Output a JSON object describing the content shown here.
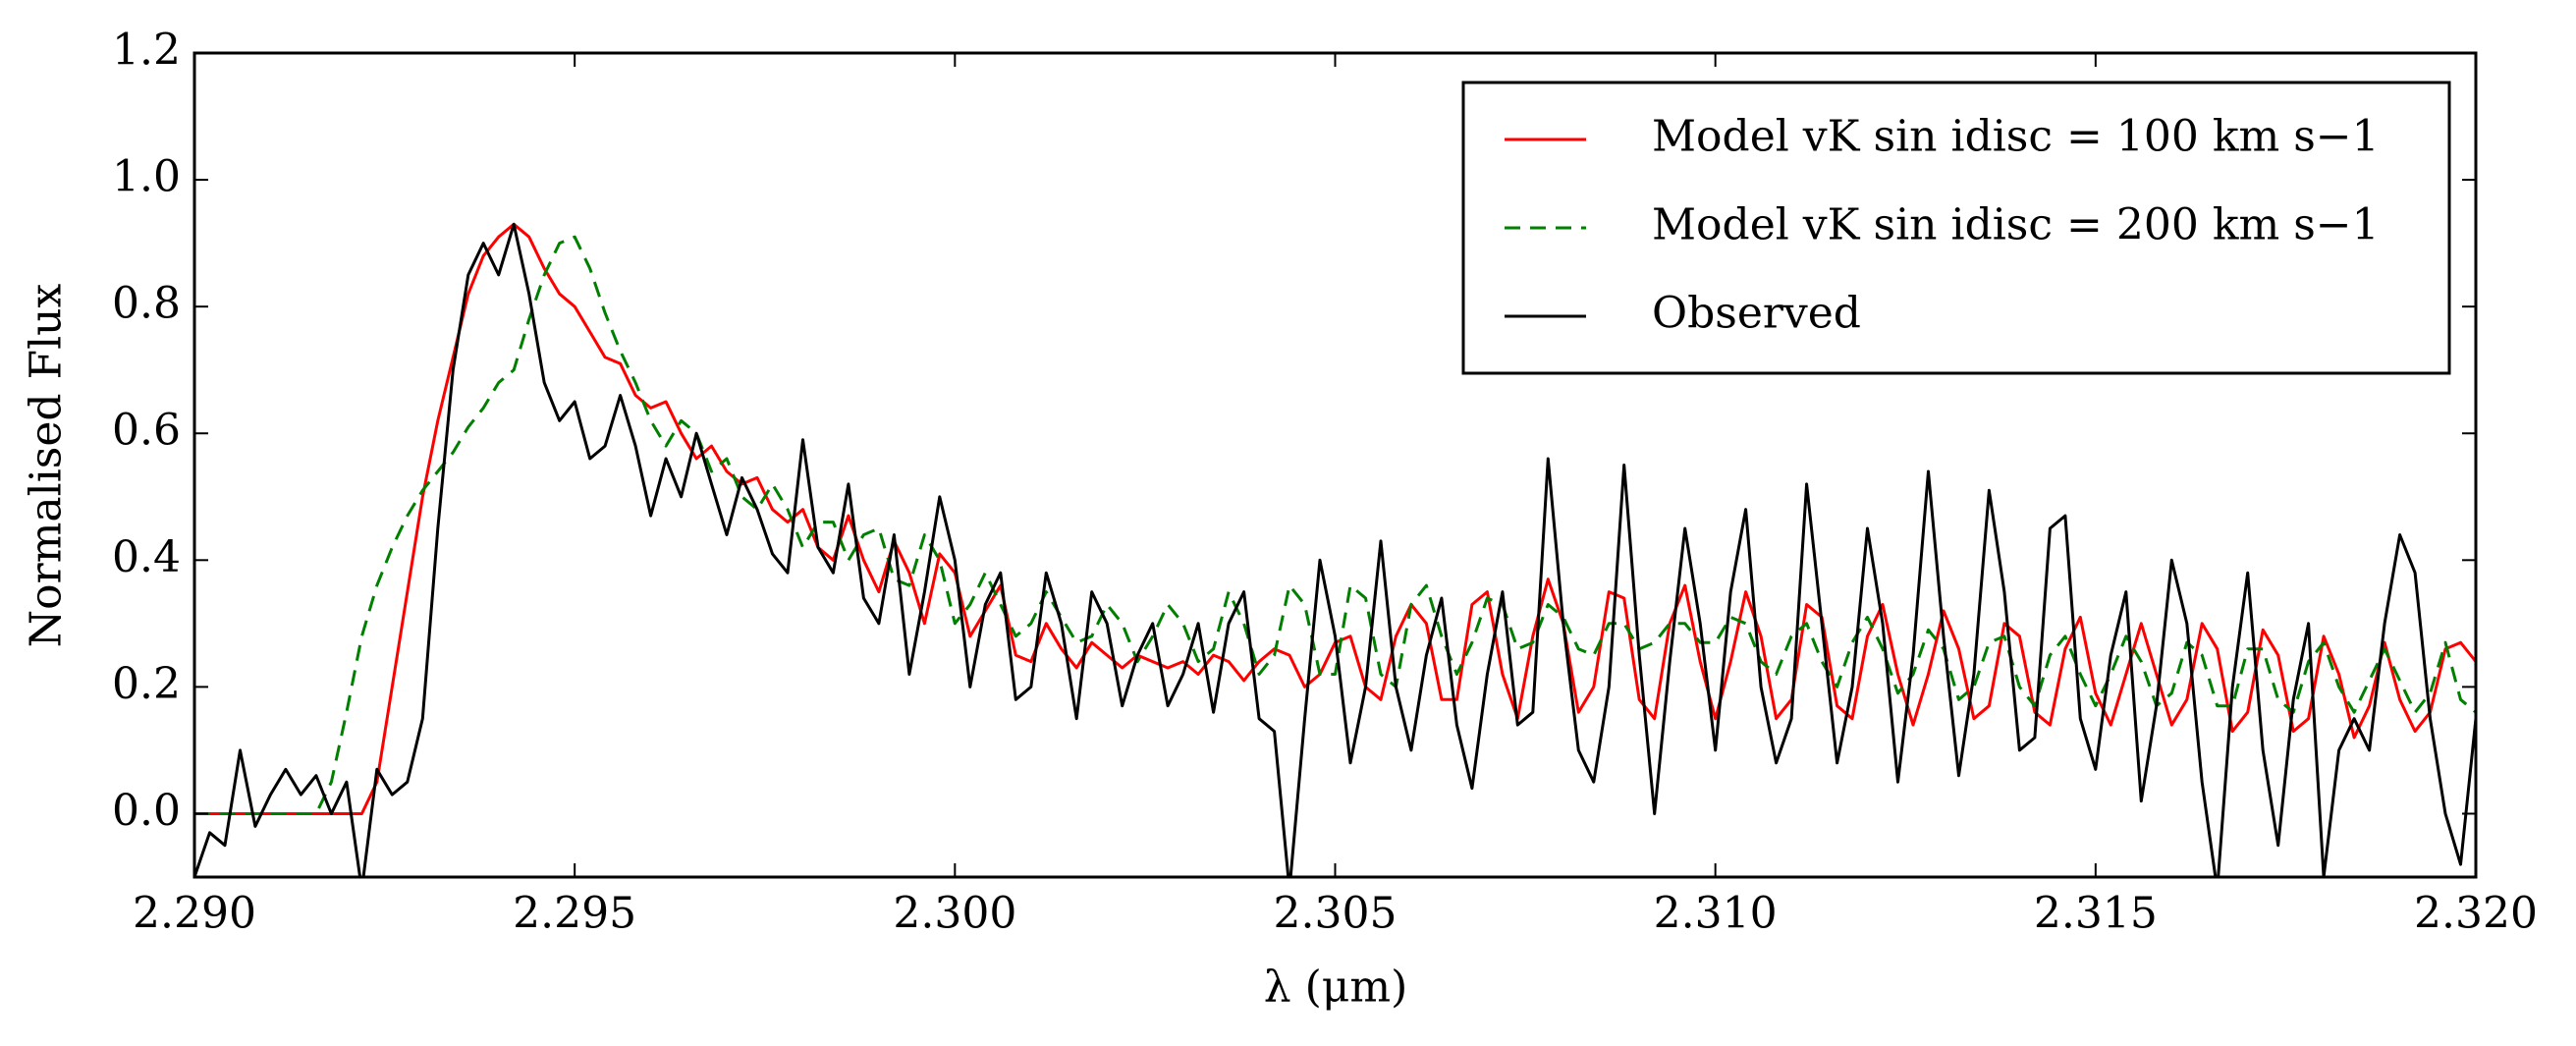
{
  "chart_data": {
    "type": "line",
    "x_label": "λ (μm)",
    "y_label": "Normalised Flux",
    "xlim": [
      2.29,
      2.32
    ],
    "ylim": [
      -0.1,
      1.2
    ],
    "xticks": [
      {
        "value": 2.29,
        "label": "2.290"
      },
      {
        "value": 2.295,
        "label": "2.295"
      },
      {
        "value": 2.3,
        "label": "2.300"
      },
      {
        "value": 2.305,
        "label": "2.305"
      },
      {
        "value": 2.31,
        "label": "2.310"
      },
      {
        "value": 2.315,
        "label": "2.315"
      },
      {
        "value": 2.32,
        "label": "2.320"
      }
    ],
    "yticks": [
      {
        "value": 0,
        "label": "0.0"
      },
      0.2,
      0.4,
      0.6,
      0.8,
      {
        "value": 1,
        "label": "1.0"
      },
      1.2
    ],
    "legend": "upper right",
    "x": [
      2.29,
      2.2902,
      2.2904,
      2.2906,
      2.2908,
      2.291,
      2.2912,
      2.2914,
      2.2916,
      2.2918,
      2.292,
      2.2922,
      2.2924,
      2.2926,
      2.2928,
      2.293,
      2.2932,
      2.2934,
      2.2936,
      2.2938,
      2.294,
      2.2942,
      2.2944,
      2.2946,
      2.2948,
      2.295,
      2.2952,
      2.2954,
      2.2956,
      2.2958,
      2.296,
      2.2962,
      2.2964,
      2.2966,
      2.2968,
      2.297,
      2.2972,
      2.2974,
      2.2976,
      2.2978,
      2.298,
      2.2982,
      2.2984,
      2.2986,
      2.2988,
      2.299,
      2.2992,
      2.2994,
      2.2996,
      2.2998,
      2.3,
      2.3002,
      2.3004,
      2.3006,
      2.3008,
      2.301,
      2.3012,
      2.3014,
      2.3016,
      2.3018,
      2.302,
      2.3022,
      2.3024,
      2.3026,
      2.3028,
      2.303,
      2.3032,
      2.3034,
      2.3036,
      2.3038,
      2.304,
      2.3042,
      2.3044,
      2.3046,
      2.3048,
      2.305,
      2.3052,
      2.3054,
      2.3056,
      2.3058,
      2.306,
      2.3062,
      2.3064,
      2.3066,
      2.3068,
      2.307,
      2.3072,
      2.3074,
      2.3076,
      2.3078,
      2.308,
      2.3082,
      2.3084,
      2.3086,
      2.3088,
      2.309,
      2.3092,
      2.3094,
      2.3096,
      2.3098,
      2.31,
      2.3102,
      2.3104,
      2.3106,
      2.3108,
      2.311,
      2.3112,
      2.3114,
      2.3116,
      2.3118,
      2.312,
      2.3122,
      2.3124,
      2.3126,
      2.3128,
      2.313,
      2.3132,
      2.3134,
      2.3136,
      2.3138,
      2.314,
      2.3142,
      2.3144,
      2.3146,
      2.3148,
      2.315,
      2.3152,
      2.3154,
      2.3156,
      2.3158,
      2.316,
      2.3162,
      2.3164,
      2.3166,
      2.3168,
      2.317,
      2.3172,
      2.3174,
      2.3176,
      2.3178,
      2.318,
      2.3182,
      2.3184,
      2.3186,
      2.3188,
      2.319,
      2.3192,
      2.3194,
      2.3196,
      2.3198,
      2.32
    ],
    "series": [
      {
        "name": "Model vK sin idisc = 100 km s−1",
        "color": "#ff0000",
        "dash": false,
        "values": [
          0,
          0,
          0,
          0,
          0,
          0,
          0,
          0,
          0,
          0,
          0,
          0,
          0.05,
          0.2,
          0.35,
          0.5,
          0.62,
          0.72,
          0.82,
          0.88,
          0.91,
          0.93,
          0.91,
          0.86,
          0.82,
          0.8,
          0.76,
          0.72,
          0.71,
          0.66,
          0.64,
          0.65,
          0.6,
          0.56,
          0.58,
          0.54,
          0.52,
          0.53,
          0.48,
          0.46,
          0.48,
          0.42,
          0.4,
          0.47,
          0.4,
          0.35,
          0.43,
          0.38,
          0.3,
          0.41,
          0.38,
          0.28,
          0.32,
          0.36,
          0.25,
          0.24,
          0.3,
          0.26,
          0.23,
          0.27,
          0.25,
          0.23,
          0.25,
          0.24,
          0.23,
          0.24,
          0.22,
          0.25,
          0.24,
          0.21,
          0.24,
          0.26,
          0.25,
          0.2,
          0.22,
          0.27,
          0.28,
          0.2,
          0.18,
          0.28,
          0.33,
          0.3,
          0.18,
          0.18,
          0.33,
          0.35,
          0.22,
          0.15,
          0.28,
          0.37,
          0.3,
          0.16,
          0.2,
          0.35,
          0.34,
          0.18,
          0.15,
          0.3,
          0.36,
          0.24,
          0.15,
          0.24,
          0.35,
          0.28,
          0.15,
          0.18,
          0.33,
          0.31,
          0.17,
          0.15,
          0.28,
          0.33,
          0.22,
          0.14,
          0.22,
          0.32,
          0.26,
          0.15,
          0.17,
          0.3,
          0.28,
          0.16,
          0.14,
          0.26,
          0.31,
          0.19,
          0.14,
          0.22,
          0.3,
          0.22,
          0.14,
          0.18,
          0.3,
          0.26,
          0.13,
          0.16,
          0.29,
          0.25,
          0.13,
          0.15,
          0.28,
          0.22,
          0.12,
          0.17,
          0.27,
          0.18,
          0.13,
          0.16,
          0.26,
          0.27,
          0.24
        ]
      },
      {
        "name": "Model vK sin idisc = 200 km s−1",
        "color": "#007f00",
        "dash": true,
        "values": [
          0,
          0,
          0,
          0,
          0,
          0,
          0,
          0,
          0,
          0.05,
          0.16,
          0.28,
          0.36,
          0.42,
          0.47,
          0.51,
          0.54,
          0.57,
          0.61,
          0.64,
          0.68,
          0.7,
          0.78,
          0.85,
          0.9,
          0.91,
          0.86,
          0.79,
          0.73,
          0.68,
          0.62,
          0.58,
          0.62,
          0.6,
          0.54,
          0.56,
          0.5,
          0.48,
          0.52,
          0.48,
          0.42,
          0.46,
          0.46,
          0.4,
          0.44,
          0.45,
          0.37,
          0.36,
          0.44,
          0.4,
          0.3,
          0.33,
          0.38,
          0.33,
          0.28,
          0.3,
          0.35,
          0.31,
          0.27,
          0.28,
          0.33,
          0.3,
          0.24,
          0.28,
          0.33,
          0.3,
          0.24,
          0.26,
          0.35,
          0.3,
          0.22,
          0.25,
          0.36,
          0.33,
          0.22,
          0.22,
          0.36,
          0.34,
          0.22,
          0.2,
          0.33,
          0.36,
          0.28,
          0.22,
          0.27,
          0.34,
          0.33,
          0.26,
          0.27,
          0.33,
          0.31,
          0.26,
          0.25,
          0.3,
          0.3,
          0.26,
          0.27,
          0.3,
          0.3,
          0.27,
          0.27,
          0.31,
          0.3,
          0.24,
          0.22,
          0.28,
          0.3,
          0.24,
          0.2,
          0.27,
          0.31,
          0.26,
          0.19,
          0.22,
          0.29,
          0.26,
          0.18,
          0.2,
          0.27,
          0.28,
          0.2,
          0.17,
          0.25,
          0.28,
          0.22,
          0.17,
          0.22,
          0.28,
          0.24,
          0.17,
          0.19,
          0.27,
          0.25,
          0.17,
          0.17,
          0.26,
          0.26,
          0.18,
          0.16,
          0.24,
          0.27,
          0.2,
          0.16,
          0.21,
          0.26,
          0.21,
          0.16,
          0.19,
          0.27,
          0.18,
          0.16
        ]
      },
      {
        "name": "Observed",
        "color": "#000000",
        "dash": false,
        "values": [
          -0.1,
          -0.03,
          -0.05,
          0.1,
          -0.02,
          0.03,
          0.07,
          0.03,
          0.06,
          0,
          0.05,
          -0.12,
          0.07,
          0.03,
          0.05,
          0.15,
          0.45,
          0.7,
          0.85,
          0.9,
          0.85,
          0.93,
          0.82,
          0.68,
          0.62,
          0.65,
          0.56,
          0.58,
          0.66,
          0.58,
          0.47,
          0.56,
          0.5,
          0.6,
          0.52,
          0.44,
          0.53,
          0.48,
          0.41,
          0.38,
          0.59,
          0.42,
          0.38,
          0.52,
          0.34,
          0.3,
          0.44,
          0.22,
          0.35,
          0.5,
          0.4,
          0.2,
          0.33,
          0.38,
          0.18,
          0.2,
          0.38,
          0.3,
          0.15,
          0.35,
          0.3,
          0.17,
          0.25,
          0.3,
          0.17,
          0.22,
          0.3,
          0.16,
          0.3,
          0.35,
          0.15,
          0.13,
          -0.12,
          0.15,
          0.4,
          0.28,
          0.08,
          0.2,
          0.43,
          0.2,
          0.1,
          0.25,
          0.34,
          0.14,
          0.04,
          0.22,
          0.35,
          0.14,
          0.16,
          0.56,
          0.3,
          0.1,
          0.05,
          0.2,
          0.55,
          0.25,
          0,
          0.24,
          0.45,
          0.3,
          0.1,
          0.35,
          0.48,
          0.2,
          0.08,
          0.15,
          0.52,
          0.3,
          0.08,
          0.2,
          0.45,
          0.3,
          0.05,
          0.25,
          0.54,
          0.28,
          0.06,
          0.22,
          0.51,
          0.35,
          0.1,
          0.12,
          0.45,
          0.47,
          0.15,
          0.07,
          0.25,
          0.35,
          0.02,
          0.17,
          0.4,
          0.3,
          0.05,
          -0.12,
          0.2,
          0.38,
          0.1,
          -0.05,
          0.18,
          0.3,
          -0.1,
          0.1,
          0.15,
          0.1,
          0.3,
          0.44,
          0.38,
          0.15,
          0,
          -0.08,
          0.15
        ]
      }
    ]
  }
}
